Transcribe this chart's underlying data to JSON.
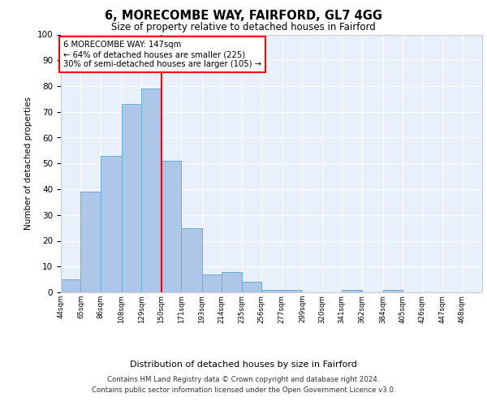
{
  "title": "6, MORECOMBE WAY, FAIRFORD, GL7 4GG",
  "subtitle": "Size of property relative to detached houses in Fairford",
  "xlabel": "Distribution of detached houses by size in Fairford",
  "ylabel": "Number of detached properties",
  "bin_labels": [
    "44sqm",
    "65sqm",
    "86sqm",
    "108sqm",
    "129sqm",
    "150sqm",
    "171sqm",
    "193sqm",
    "214sqm",
    "235sqm",
    "256sqm",
    "277sqm",
    "299sqm",
    "320sqm",
    "341sqm",
    "362sqm",
    "384sqm",
    "405sqm",
    "426sqm",
    "447sqm",
    "468sqm"
  ],
  "bins": [
    44,
    65,
    86,
    108,
    129,
    150,
    171,
    193,
    214,
    235,
    256,
    277,
    299,
    320,
    341,
    362,
    384,
    405,
    426,
    447,
    468,
    489
  ],
  "heights": [
    5,
    39,
    53,
    73,
    79,
    51,
    25,
    7,
    8,
    4,
    1,
    1,
    0,
    0,
    1,
    0,
    1,
    0,
    0,
    0,
    0
  ],
  "bar_color": "#aec6e8",
  "bar_edgecolor": "#6aaed6",
  "vline_x": 150,
  "vline_color": "red",
  "annotation_box_text": "6 MORECOMBE WAY: 147sqm\n← 64% of detached houses are smaller (225)\n30% of semi-detached houses are larger (105) →",
  "annotation_box_color": "red",
  "ylim": [
    0,
    100
  ],
  "yticks": [
    0,
    10,
    20,
    30,
    40,
    50,
    60,
    70,
    80,
    90,
    100
  ],
  "background_color": "#e8f0fb",
  "footer_line1": "Contains HM Land Registry data © Crown copyright and database right 2024.",
  "footer_line2": "Contains public sector information licensed under the Open Government Licence v3.0."
}
